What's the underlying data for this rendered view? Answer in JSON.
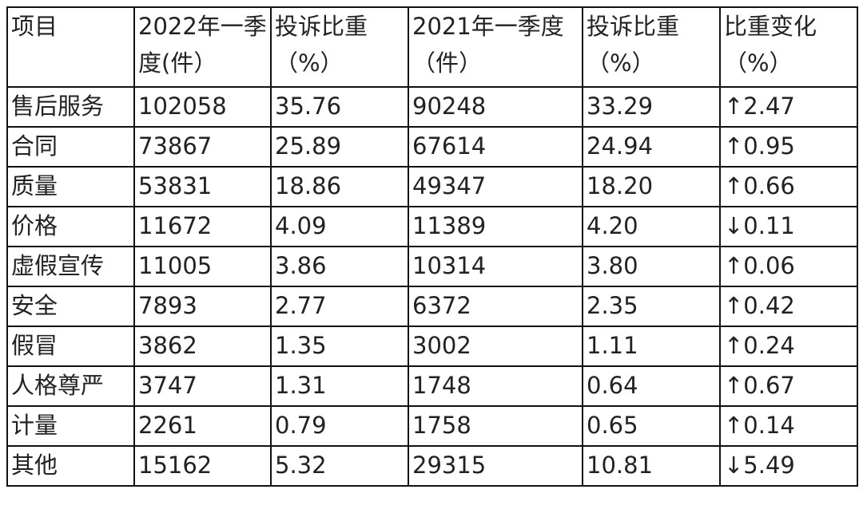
{
  "table": {
    "header": [
      "项目",
      "2022年一季度(件）",
      "投诉比重（%）",
      "2021年一季度（件）",
      "投诉比重（%）",
      "比重变化（%）"
    ],
    "rows": [
      [
        "售后服务",
        "102058",
        "35.76",
        "90248",
        "33.29",
        "↑2.47"
      ],
      [
        "合同",
        "73867",
        "25.89",
        "67614",
        "24.94",
        "↑0.95"
      ],
      [
        "质量",
        "53831",
        "18.86",
        "49347",
        "18.20",
        "↑0.66"
      ],
      [
        "价格",
        "11672",
        "4.09",
        "11389",
        "4.20",
        "↓0.11"
      ],
      [
        "虚假宣传",
        "11005",
        "3.86",
        "10314",
        "3.80",
        "↑0.06"
      ],
      [
        "安全",
        "7893",
        "2.77",
        "6372",
        "2.35",
        "↑0.42"
      ],
      [
        "假冒",
        "3862",
        "1.35",
        "3002",
        "1.11",
        "↑0.24"
      ],
      [
        "人格尊严",
        "3747",
        "1.31",
        "1748",
        "0.64",
        "↑0.67"
      ],
      [
        "计量",
        "2261",
        "0.79",
        "1758",
        "0.65",
        "↑0.14"
      ],
      [
        "其他",
        "15162",
        "5.32",
        "29315",
        "10.81",
        "↓5.49"
      ]
    ]
  }
}
